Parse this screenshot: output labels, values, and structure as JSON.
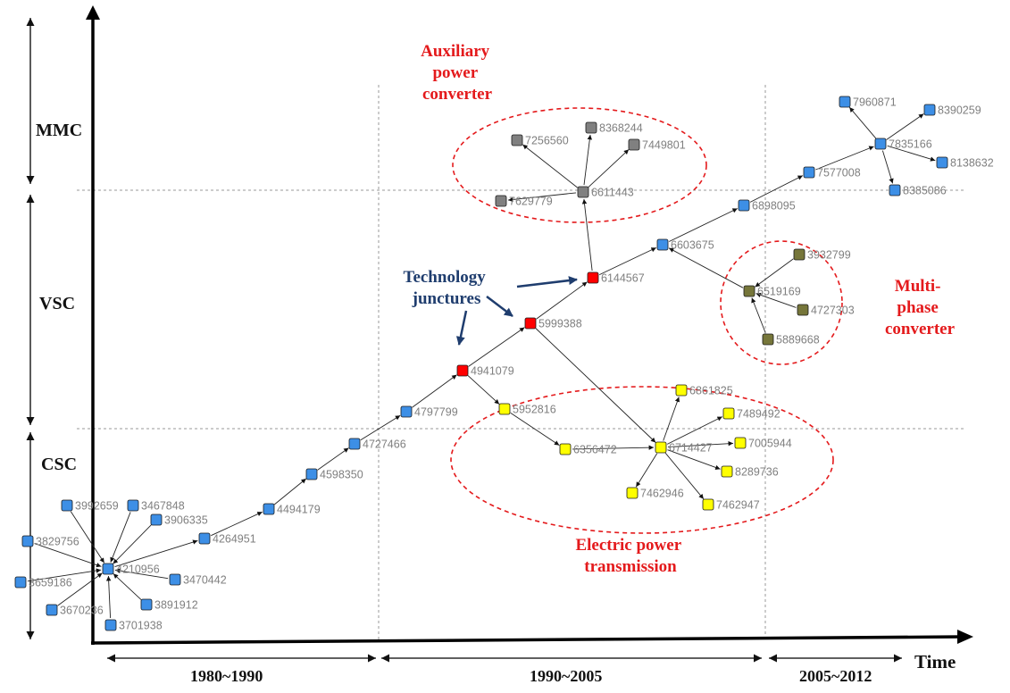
{
  "axes": {
    "time_label": "Time",
    "bands": [
      "MMC",
      "VSC",
      "CSC"
    ],
    "periods": [
      "1980~1990",
      "1990~2005",
      "2005~2012"
    ]
  },
  "regions": {
    "auxiliary": [
      "Auxiliary",
      "power",
      "converter"
    ],
    "multiphase": [
      "Multi-",
      "phase",
      "converter"
    ],
    "transmission": [
      "Electric power",
      "transmission"
    ]
  },
  "juncture_label": [
    "Technology",
    "junctures"
  ],
  "colors": {
    "main": "#3d8fe6",
    "juncture": "#ff0000",
    "auxiliary": "#808080",
    "multiphase": "#76763a",
    "transmission": "#ffff00",
    "region_outline": "#e41a1c",
    "juncture_text": "#1f3d6e"
  },
  "nodes": {
    "n3992659": {
      "label": "3992659",
      "group": "main"
    },
    "n3467848": {
      "label": "3467848",
      "group": "main"
    },
    "n3906335": {
      "label": "3906335",
      "group": "main"
    },
    "n3829756": {
      "label": "3829756",
      "group": "main"
    },
    "n3659186": {
      "label": "3659186",
      "group": "main"
    },
    "n3670236": {
      "label": "3670236",
      "group": "main"
    },
    "n3701938": {
      "label": "3701938",
      "group": "main"
    },
    "n3891912": {
      "label": "3891912",
      "group": "main"
    },
    "n3470442": {
      "label": "3470442",
      "group": "main"
    },
    "n4210956": {
      "label": "4210956",
      "group": "main"
    },
    "n4264951": {
      "label": "4264951",
      "group": "main"
    },
    "n4494179": {
      "label": "4494179",
      "group": "main"
    },
    "n4598350": {
      "label": "4598350",
      "group": "main"
    },
    "n4727466": {
      "label": "4727466",
      "group": "main"
    },
    "n4797799": {
      "label": "4797799",
      "group": "main"
    },
    "n4941079": {
      "label": "4941079",
      "group": "juncture"
    },
    "n5999388": {
      "label": "5999388",
      "group": "juncture"
    },
    "n6144567": {
      "label": "6144567",
      "group": "juncture"
    },
    "n6603675": {
      "label": "6603675",
      "group": "main"
    },
    "n6898095": {
      "label": "6898095",
      "group": "main"
    },
    "n7577008": {
      "label": "7577008",
      "group": "main"
    },
    "n7835166": {
      "label": "7835166",
      "group": "main"
    },
    "n7960871": {
      "label": "7960871",
      "group": "main"
    },
    "n8390259": {
      "label": "8390259",
      "group": "main"
    },
    "n8138632": {
      "label": "8138632",
      "group": "main"
    },
    "n8385086": {
      "label": "8385086",
      "group": "main"
    },
    "n6611443": {
      "label": "6611443",
      "group": "auxiliary"
    },
    "n7629779": {
      "label": "7629779",
      "group": "auxiliary"
    },
    "n7256560": {
      "label": "7256560",
      "group": "auxiliary"
    },
    "n8368244": {
      "label": "8368244",
      "group": "auxiliary"
    },
    "n7449801": {
      "label": "7449801",
      "group": "auxiliary"
    },
    "n6519169": {
      "label": "6519169",
      "group": "multiphase"
    },
    "n3932799": {
      "label": "3932799",
      "group": "multiphase"
    },
    "n4727303": {
      "label": "4727303",
      "group": "multiphase"
    },
    "n5889668": {
      "label": "5889668",
      "group": "multiphase"
    },
    "n5952816": {
      "label": "5952816",
      "group": "transmission"
    },
    "n6356472": {
      "label": "6356472",
      "group": "transmission"
    },
    "n6714427": {
      "label": "6714427",
      "group": "transmission"
    },
    "n6861825": {
      "label": "6861825",
      "group": "transmission"
    },
    "n7489492": {
      "label": "7489492",
      "group": "transmission"
    },
    "n7005944": {
      "label": "7005944",
      "group": "transmission"
    },
    "n8289736": {
      "label": "8289736",
      "group": "transmission"
    },
    "n7462947": {
      "label": "7462947",
      "group": "transmission"
    },
    "n7462946": {
      "label": "7462946",
      "group": "transmission"
    }
  },
  "edges": [
    [
      "n3992659",
      "n4210956"
    ],
    [
      "n3467848",
      "n4210956"
    ],
    [
      "n3906335",
      "n4210956"
    ],
    [
      "n3829756",
      "n4210956"
    ],
    [
      "n3659186",
      "n4210956"
    ],
    [
      "n3670236",
      "n4210956"
    ],
    [
      "n3701938",
      "n4210956"
    ],
    [
      "n3891912",
      "n4210956"
    ],
    [
      "n3470442",
      "n4210956"
    ],
    [
      "n4210956",
      "n4264951"
    ],
    [
      "n4264951",
      "n4494179"
    ],
    [
      "n4494179",
      "n4598350"
    ],
    [
      "n4598350",
      "n4727466"
    ],
    [
      "n4727466",
      "n4797799"
    ],
    [
      "n4797799",
      "n4941079"
    ],
    [
      "n4941079",
      "n5999388"
    ],
    [
      "n5999388",
      "n6144567"
    ],
    [
      "n6144567",
      "n6603675"
    ],
    [
      "n6603675",
      "n6898095"
    ],
    [
      "n6898095",
      "n7577008"
    ],
    [
      "n7577008",
      "n7835166"
    ],
    [
      "n7835166",
      "n7960871"
    ],
    [
      "n7835166",
      "n8390259"
    ],
    [
      "n7835166",
      "n8138632"
    ],
    [
      "n7835166",
      "n8385086"
    ],
    [
      "n6144567",
      "n6611443"
    ],
    [
      "n6611443",
      "n7629779"
    ],
    [
      "n6611443",
      "n7256560"
    ],
    [
      "n6611443",
      "n8368244"
    ],
    [
      "n6611443",
      "n7449801"
    ],
    [
      "n6519169",
      "n6603675"
    ],
    [
      "n3932799",
      "n6519169"
    ],
    [
      "n4727303",
      "n6519169"
    ],
    [
      "n5889668",
      "n6519169"
    ],
    [
      "n4941079",
      "n5952816"
    ],
    [
      "n5952816",
      "n6356472"
    ],
    [
      "n6356472",
      "n6714427"
    ],
    [
      "n5999388",
      "n6714427"
    ],
    [
      "n6714427",
      "n6861825"
    ],
    [
      "n6714427",
      "n7489492"
    ],
    [
      "n6714427",
      "n7005944"
    ],
    [
      "n6714427",
      "n8289736"
    ],
    [
      "n6714427",
      "n7462947"
    ],
    [
      "n6714427",
      "n7462946"
    ]
  ]
}
